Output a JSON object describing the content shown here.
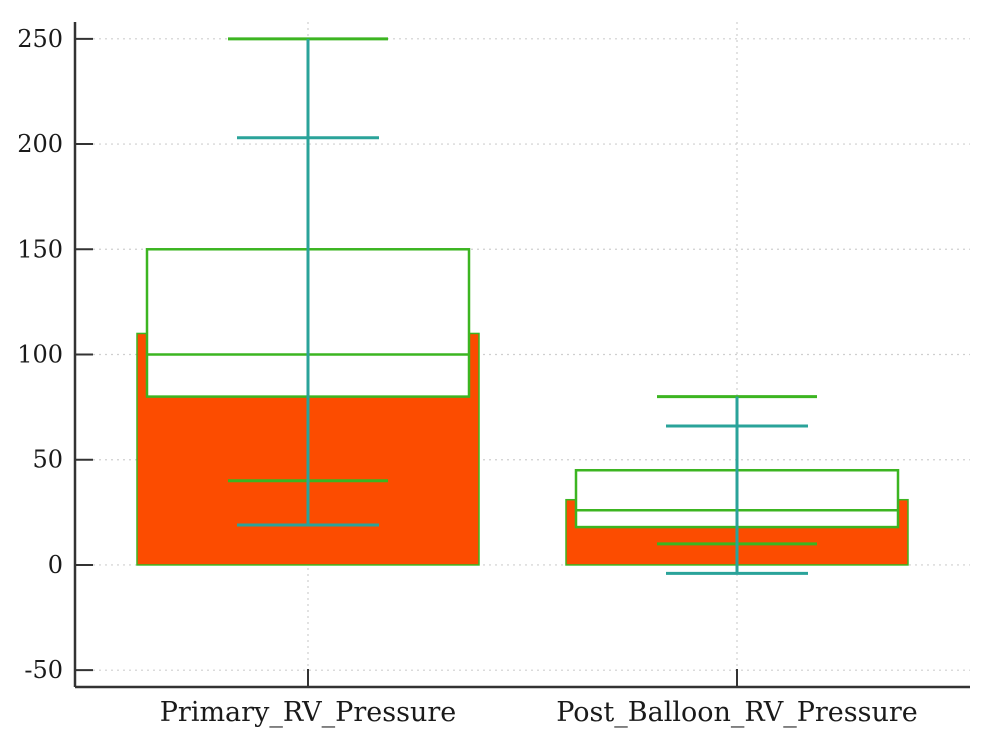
{
  "chart_data": {
    "type": "bar",
    "title": "",
    "xlabel": "",
    "ylabel": "",
    "ylim": [
      -58,
      258
    ],
    "yticks": [
      250,
      200,
      150,
      100,
      50,
      0,
      -50
    ],
    "grid": true,
    "categories": [
      "Primary_RV_Pressure",
      "Post_Balloon_RV_Pressure"
    ],
    "bar_values": [
      110,
      31
    ],
    "box": [
      {
        "q1": 80,
        "median": 100,
        "q3": 150,
        "min": 40,
        "max": 250
      },
      {
        "q1": 18,
        "median": 26,
        "q3": 45,
        "min": 10,
        "max": 80
      }
    ],
    "error_bar": [
      {
        "low": 19,
        "high": 203
      },
      {
        "low": -4,
        "high": 66
      }
    ],
    "colors": {
      "bar": "#fc4c00",
      "box": "#3cb521",
      "error_bar": "#2aa39a",
      "axis": "#333333",
      "grid": "#cfcfcf"
    }
  }
}
